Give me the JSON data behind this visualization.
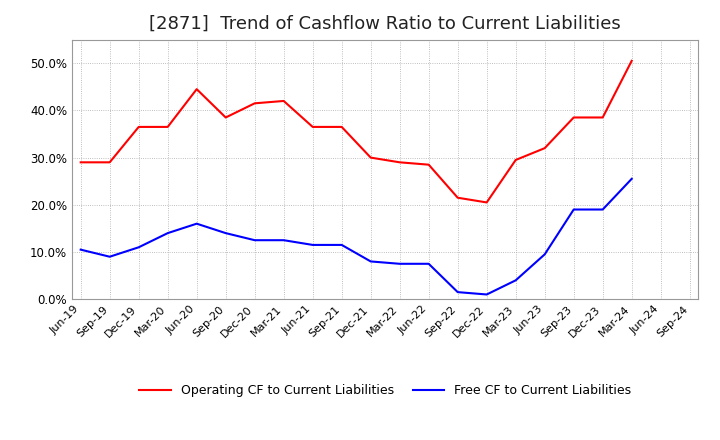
{
  "title": "[2871]  Trend of Cashflow Ratio to Current Liabilities",
  "x_labels": [
    "Jun-19",
    "Sep-19",
    "Dec-19",
    "Mar-20",
    "Jun-20",
    "Sep-20",
    "Dec-20",
    "Mar-21",
    "Jun-21",
    "Sep-21",
    "Dec-21",
    "Mar-22",
    "Jun-22",
    "Sep-22",
    "Dec-22",
    "Mar-23",
    "Jun-23",
    "Sep-23",
    "Dec-23",
    "Mar-24",
    "Jun-24",
    "Sep-24"
  ],
  "operating_cf": [
    29.0,
    29.0,
    36.5,
    36.5,
    44.5,
    38.5,
    41.5,
    42.0,
    36.5,
    36.5,
    30.0,
    29.0,
    28.5,
    21.5,
    20.5,
    29.5,
    32.0,
    38.5,
    38.5,
    50.5,
    null,
    null
  ],
  "free_cf": [
    10.5,
    9.0,
    11.0,
    14.0,
    16.0,
    14.0,
    12.5,
    12.5,
    11.5,
    11.5,
    8.0,
    7.5,
    7.5,
    1.5,
    1.0,
    4.0,
    9.5,
    19.0,
    19.0,
    25.5,
    null,
    null
  ],
  "operating_color": "#FF0000",
  "free_color": "#0000FF",
  "ylim": [
    0.0,
    55.0
  ],
  "yticks": [
    0.0,
    10.0,
    20.0,
    30.0,
    40.0,
    50.0
  ],
  "background_color": "#FFFFFF",
  "grid_color": "#AAAAAA",
  "title_fontsize": 13,
  "legend_labels": [
    "Operating CF to Current Liabilities",
    "Free CF to Current Liabilities"
  ]
}
